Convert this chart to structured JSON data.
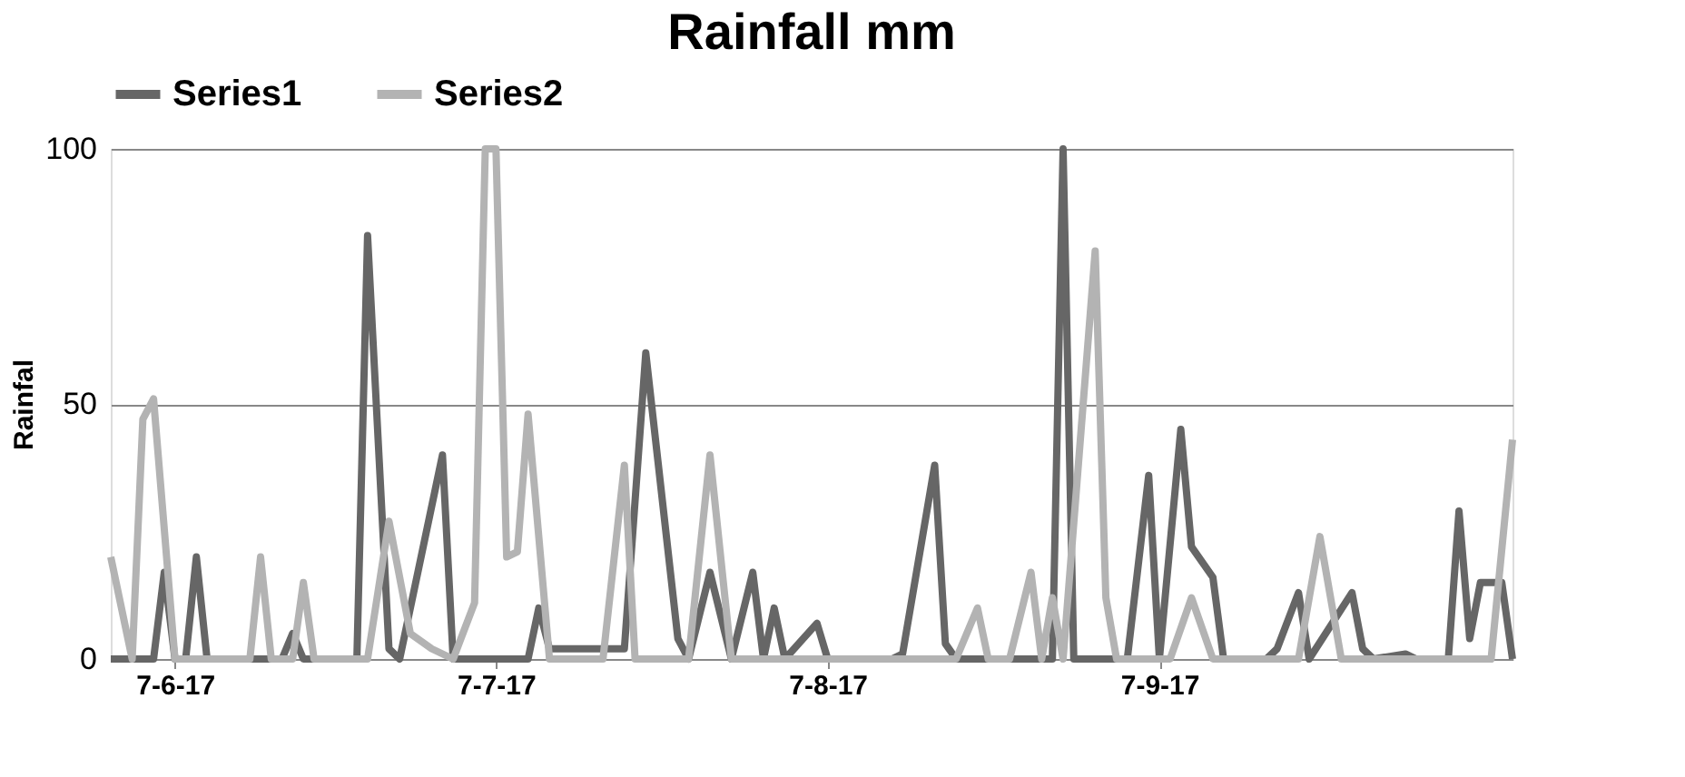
{
  "chart_data": {
    "type": "line",
    "title": "Rainfall mm",
    "ylabel": "Rainfal",
    "xlim": [
      "2017-06-01",
      "2017-10-10"
    ],
    "xticks": [
      {
        "value": "2017-06-07",
        "label": "7-6-17"
      },
      {
        "value": "2017-07-07",
        "label": "7-7-17"
      },
      {
        "value": "2017-08-07",
        "label": "7-8-17"
      },
      {
        "value": "2017-09-07",
        "label": "7-9-17"
      }
    ],
    "ylim": [
      0,
      100
    ],
    "yticks": [
      0,
      50,
      100
    ],
    "grid": "y",
    "legend": "top",
    "marker": "none",
    "line_style": "solid",
    "series": [
      {
        "name": "Series1",
        "color": "#666666",
        "x": [
          "2017-06-01",
          "2017-06-05",
          "2017-06-06",
          "2017-06-07",
          "2017-06-08",
          "2017-06-09",
          "2017-06-10",
          "2017-06-17",
          "2017-06-18",
          "2017-06-19",
          "2017-06-24",
          "2017-06-25",
          "2017-06-27",
          "2017-06-28",
          "2017-07-02",
          "2017-07-03",
          "2017-07-10",
          "2017-07-11",
          "2017-07-12",
          "2017-07-16",
          "2017-07-19",
          "2017-07-21",
          "2017-07-24",
          "2017-07-25",
          "2017-07-27",
          "2017-07-29",
          "2017-07-31",
          "2017-08-01",
          "2017-08-02",
          "2017-08-03",
          "2017-08-06",
          "2017-08-07",
          "2017-08-13",
          "2017-08-14",
          "2017-08-17",
          "2017-08-18",
          "2017-08-19",
          "2017-08-28",
          "2017-08-29",
          "2017-08-30",
          "2017-09-04",
          "2017-09-06",
          "2017-09-07",
          "2017-09-09",
          "2017-09-10",
          "2017-09-12",
          "2017-09-13",
          "2017-09-17",
          "2017-09-18",
          "2017-09-20",
          "2017-09-21",
          "2017-09-25",
          "2017-09-26",
          "2017-09-27",
          "2017-09-30",
          "2017-10-01",
          "2017-10-04",
          "2017-10-05",
          "2017-10-06",
          "2017-10-07",
          "2017-10-09",
          "2017-10-10"
        ],
        "values": [
          0,
          0,
          17,
          0,
          0,
          20,
          0,
          0,
          5,
          0,
          0,
          83,
          2,
          0,
          40,
          0,
          0,
          10,
          2,
          2,
          2,
          60,
          4,
          0,
          17,
          0,
          17,
          0,
          10,
          0,
          7,
          0,
          0,
          1,
          38,
          3,
          0,
          0,
          100,
          0,
          0,
          36,
          0,
          45,
          22,
          16,
          0,
          0,
          2,
          13,
          0,
          13,
          2,
          0,
          1,
          0,
          0,
          29,
          4,
          15,
          15,
          0
        ]
      },
      {
        "name": "Series2",
        "color": "#b3b3b3",
        "x": [
          "2017-06-01",
          "2017-06-03",
          "2017-06-04",
          "2017-06-05",
          "2017-06-07",
          "2017-06-14",
          "2017-06-15",
          "2017-06-16",
          "2017-06-18",
          "2017-06-19",
          "2017-06-20",
          "2017-06-25",
          "2017-06-27",
          "2017-06-29",
          "2017-07-01",
          "2017-07-03",
          "2017-07-05",
          "2017-07-06",
          "2017-07-07",
          "2017-07-08",
          "2017-07-09",
          "2017-07-10",
          "2017-07-12",
          "2017-07-17",
          "2017-07-19",
          "2017-07-20",
          "2017-07-25",
          "2017-07-27",
          "2017-07-29",
          "2017-08-19",
          "2017-08-21",
          "2017-08-22",
          "2017-08-24",
          "2017-08-26",
          "2017-08-27",
          "2017-08-28",
          "2017-08-29",
          "2017-09-01",
          "2017-09-02",
          "2017-09-03",
          "2017-09-08",
          "2017-09-10",
          "2017-09-12",
          "2017-09-20",
          "2017-09-22",
          "2017-09-24",
          "2017-10-08",
          "2017-10-10"
        ],
        "values": [
          20,
          0,
          47,
          51,
          0,
          0,
          20,
          0,
          0,
          15,
          0,
          0,
          27,
          5,
          2,
          0,
          11,
          100,
          100,
          20,
          21,
          48,
          0,
          0,
          38,
          0,
          0,
          40,
          0,
          0,
          10,
          0,
          0,
          17,
          0,
          12,
          0,
          80,
          12,
          0,
          0,
          12,
          0,
          0,
          24,
          0,
          0,
          43
        ]
      }
    ]
  }
}
